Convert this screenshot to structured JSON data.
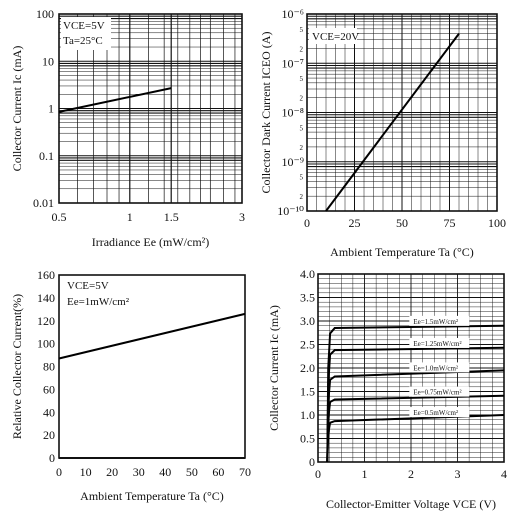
{
  "chart_data": [
    {
      "type": "line",
      "xlabel": "Irradiance Ee (mW/cm²)",
      "ylabel": "Collector Current Ic (mA)",
      "x_scale": "log",
      "y_scale": "log",
      "xlim": [
        0.5,
        3
      ],
      "ylim": [
        0.01,
        100
      ],
      "xticks": [
        0.5,
        1,
        1.5,
        3
      ],
      "xtick_labels": [
        "0.5",
        "1",
        "1.5",
        "3"
      ],
      "yticks": [
        0.01,
        0.1,
        1,
        10,
        100
      ],
      "ytick_labels": [
        "0.01",
        "0.1",
        "1",
        "10",
        "100"
      ],
      "grid": true,
      "annotations": [
        "VCE=5V",
        "Ta=25°C"
      ],
      "series": [
        {
          "x": [
            0.5,
            1.5
          ],
          "y": [
            0.85,
            2.7
          ]
        }
      ]
    },
    {
      "type": "line",
      "xlabel": "Ambient Temperature Ta (°C)",
      "ylabel": "Collector Dark Current ICEO (A)",
      "x_scale": "linear",
      "y_scale": "log",
      "xlim": [
        0,
        100
      ],
      "ylim": [
        1e-10,
        1e-06
      ],
      "xticks": [
        0,
        25,
        50,
        75,
        100
      ],
      "xtick_labels": [
        "0",
        "25",
        "50",
        "75",
        "100"
      ],
      "ytick_major_labels": [
        "10⁻⁶",
        "10⁻⁷",
        "10⁻⁸",
        "10⁻⁹",
        "10⁻¹⁰"
      ],
      "ytick_minor_labels": [
        "5",
        "2"
      ],
      "grid": true,
      "annotations": [
        "VCE=20V"
      ],
      "series": [
        {
          "x": [
            10,
            80
          ],
          "y": [
            1e-10,
            4e-07
          ]
        }
      ]
    },
    {
      "type": "line",
      "xlabel": "Ambient Temperature Ta (°C)",
      "ylabel": "Relative Collector Current(%)",
      "x_scale": "linear",
      "y_scale": "linear",
      "xlim": [
        0,
        70
      ],
      "ylim": [
        0,
        160
      ],
      "xticks": [
        0,
        10,
        20,
        30,
        40,
        50,
        60,
        70
      ],
      "yticks": [
        0,
        20,
        40,
        60,
        80,
        100,
        120,
        140,
        160
      ],
      "grid": false,
      "annotations": [
        "VCE=5V",
        "Ee=1mW/cm²"
      ],
      "series": [
        {
          "x": [
            0,
            70
          ],
          "y": [
            87,
            126
          ]
        }
      ]
    },
    {
      "type": "line",
      "xlabel": "Collector-Emitter Voltage VCE (V)",
      "ylabel": "Collector Current Ic (mA)",
      "x_scale": "linear",
      "y_scale": "linear",
      "xlim": [
        0,
        4
      ],
      "ylim": [
        0,
        4.0
      ],
      "xticks": [
        0,
        1,
        2,
        3,
        4
      ],
      "yticks": [
        0,
        0.5,
        1.0,
        1.5,
        2.0,
        2.5,
        3.0,
        3.5,
        4.0
      ],
      "ytick_labels": [
        "0",
        "0.5",
        "1.0",
        "1.5",
        "2.0",
        "2.5",
        "3.0",
        "3.5",
        "4.0"
      ],
      "grid": true,
      "series": [
        {
          "name": "Ee=1.5mW/cm²",
          "sat": 2.85,
          "end": 2.9
        },
        {
          "name": "Ee=1.25mW/cm²",
          "sat": 2.38,
          "end": 2.43
        },
        {
          "name": "Ee=1.0mW/cm²",
          "sat": 1.82,
          "end": 1.95
        },
        {
          "name": "Ee=0.75mW/cm²",
          "sat": 1.33,
          "end": 1.41
        },
        {
          "name": "Ee=0.5mW/cm²",
          "sat": 0.87,
          "end": 1.0
        }
      ]
    }
  ]
}
